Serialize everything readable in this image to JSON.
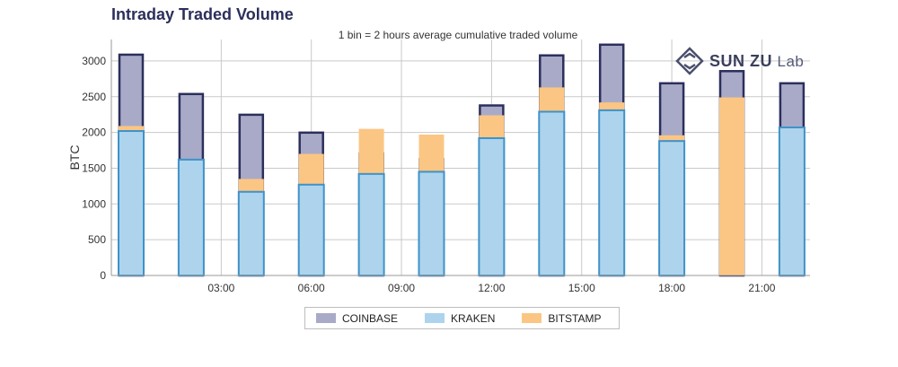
{
  "chart_data": {
    "type": "bar",
    "title": "Intraday Traded Volume",
    "subtitle": "1 bin = 2 hours average cumulative traded volume",
    "ylabel": "BTC",
    "xlabel": "",
    "ylim": [
      0,
      3300
    ],
    "yticks": [
      0,
      500,
      1000,
      1500,
      2000,
      2500,
      3000
    ],
    "xlim": [
      0,
      24
    ],
    "xticks": [
      3,
      6,
      9,
      12,
      15,
      18,
      21
    ],
    "xtick_labels": [
      "03:00",
      "06:00",
      "09:00",
      "12:00",
      "15:00",
      "18:00",
      "21:00"
    ],
    "bin_centers": [
      0,
      2,
      4,
      6,
      8,
      10,
      12,
      14,
      16,
      18,
      20,
      22
    ],
    "grid": true,
    "legend_position": "bottom",
    "series": [
      {
        "name": "COINBASE",
        "color": "#a9aac8",
        "edge": "#2b2f5b",
        "values": [
          3100,
          2550,
          2260,
          2010,
          1720,
          1640,
          2390,
          3090,
          3240,
          2700,
          2870,
          2700
        ]
      },
      {
        "name": "KRAKEN",
        "color": "#add4ec",
        "edge": "#3f92c9",
        "values": [
          2020,
          1620,
          1170,
          1270,
          1420,
          1450,
          1920,
          2290,
          2310,
          1880,
          0,
          2070
        ]
      },
      {
        "name": "BITSTAMP",
        "color": "#fbc683",
        "edge": "#fbc683",
        "values": [
          2090,
          1520,
          1350,
          1700,
          2050,
          1970,
          2240,
          2630,
          2420,
          1960,
          2490,
          1730
        ]
      }
    ]
  },
  "watermark": {
    "brand": "SUN ZU",
    "suffix": "Lab"
  }
}
